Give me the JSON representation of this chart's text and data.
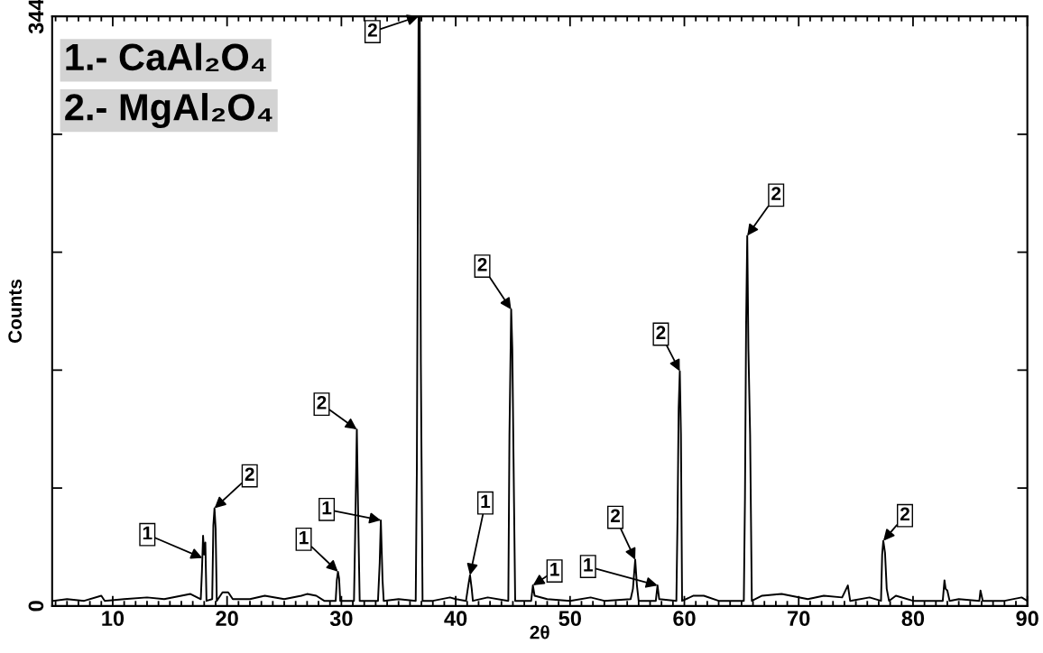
{
  "chart_data": {
    "type": "line",
    "xlabel": "2θ",
    "ylabel": "Counts",
    "xlim": [
      4.7,
      90
    ],
    "xticks": [
      10,
      20,
      30,
      40,
      50,
      60,
      70,
      80,
      90
    ],
    "ylim": [
      0,
      344
    ],
    "yticks": [
      0,
      {
        "value": 68.8,
        "label": null
      },
      {
        "value": 137.6,
        "label": null
      },
      {
        "value": 206.4,
        "label": null
      },
      {
        "value": 275.2,
        "label": null
      },
      344
    ],
    "grid": false,
    "marker": "none",
    "line_style": "solid",
    "series": [
      {
        "color": "#000000",
        "x": [
          4.8,
          6,
          7.5,
          9,
          9.3,
          11,
          13,
          14.5,
          16,
          16.8,
          17.7,
          17.8,
          17.9,
          18.0,
          18.1,
          18.2,
          18.7,
          18.8,
          18.9,
          19.0,
          19.1,
          19.6,
          20.1,
          20.5,
          22,
          23.3,
          25,
          26.5,
          27,
          27.8,
          28.5,
          29.5,
          29.6,
          29.7,
          29.8,
          29.9,
          30.5,
          31.1,
          31.2,
          31.35,
          31.5,
          31.6,
          32.5,
          33.2,
          33.35,
          33.45,
          33.6,
          33.7,
          35,
          36.5,
          36.6,
          36.75,
          36.85,
          36.95,
          37.1,
          38,
          39.5,
          40,
          40.9,
          41.1,
          41.25,
          41.4,
          41.5,
          42.8,
          44.6,
          44.7,
          44.85,
          44.95,
          45.1,
          45.2,
          46.6,
          46.75,
          46.9,
          48,
          50,
          51.8,
          53,
          55.3,
          55.5,
          55.7,
          55.85,
          56,
          57.5,
          57.65,
          57.8,
          59.3,
          59.4,
          59.5,
          59.6,
          59.7,
          59.8,
          60.8,
          61.7,
          63,
          65.2,
          65.3,
          65.4,
          65.5,
          65.6,
          65.75,
          65.9,
          66.8,
          68.5,
          70.8,
          72.2,
          73.8,
          74.3,
          74.5,
          76.2,
          77.2,
          77.3,
          77.4,
          77.55,
          77.7,
          77.9,
          78.5,
          80,
          82.6,
          82.75,
          82.85,
          83.0,
          83.2,
          84,
          85.8,
          85.9,
          86.1,
          88,
          89.5,
          90
        ],
        "values": [
          3,
          4,
          3,
          6,
          3,
          4,
          5,
          4,
          6,
          7,
          4,
          20,
          41,
          30,
          37,
          3,
          4,
          47,
          57,
          45,
          3,
          8,
          8,
          4,
          4,
          6,
          4,
          6,
          7,
          6,
          3,
          3,
          15,
          20,
          16,
          3,
          3,
          3,
          40,
          103,
          40,
          3,
          3,
          3,
          25,
          50,
          15,
          3,
          4,
          3,
          80,
          344,
          344,
          142,
          3,
          3,
          5,
          4,
          3,
          12,
          18,
          10,
          3,
          5,
          3,
          100,
          173,
          150,
          60,
          3,
          3,
          12,
          6,
          4,
          3,
          5,
          3,
          4,
          10,
          27,
          12,
          3,
          3,
          12,
          4,
          3,
          50,
          115,
          137,
          100,
          3,
          6,
          6,
          3,
          3,
          63,
          164,
          216,
          150,
          100,
          3,
          6,
          7,
          4,
          6,
          5,
          12,
          3,
          5,
          3,
          30,
          38,
          31,
          10,
          3,
          6,
          3,
          3,
          15,
          10,
          9,
          3,
          4,
          3,
          9,
          3,
          3,
          5,
          3
        ]
      }
    ],
    "annotations": [
      "1.- CaAl₂O₄",
      "2.- MgAl₂O₄",
      {
        "text": "1",
        "x": 17.84,
        "y": 28
      },
      {
        "text": "2",
        "x": 18.9,
        "y": 57
      },
      {
        "text": "1",
        "x": 29.7,
        "y": 20
      },
      {
        "text": "2",
        "x": 31.35,
        "y": 103
      },
      {
        "text": "1",
        "x": 33.45,
        "y": 50
      },
      {
        "text": "2",
        "x": 36.75,
        "y": 344
      },
      {
        "text": "1",
        "x": 41.25,
        "y": 18
      },
      {
        "text": "2",
        "x": 44.85,
        "y": 173
      },
      {
        "text": "1",
        "x": 46.75,
        "y": 12
      },
      {
        "text": "2",
        "x": 55.7,
        "y": 27
      },
      {
        "text": "1",
        "x": 57.65,
        "y": 12
      },
      {
        "text": "2",
        "x": 59.6,
        "y": 137
      },
      {
        "text": "2",
        "x": 65.5,
        "y": 216
      },
      {
        "text": "2",
        "x": 77.4,
        "y": 38
      }
    ]
  }
}
